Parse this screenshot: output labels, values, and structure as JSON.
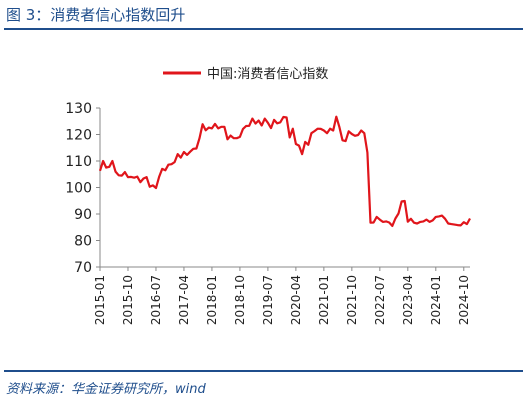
{
  "figure": {
    "title": "图 3：消费者信心指数回升",
    "source": "资料来源：华金证券研究所，wind"
  },
  "chart_data": {
    "type": "line",
    "title": "",
    "xlabel": "",
    "ylabel": "",
    "ylim": [
      70,
      130
    ],
    "yticks": [
      70,
      80,
      90,
      100,
      110,
      120,
      130
    ],
    "xticks": [
      "2015-01",
      "2015-10",
      "2016-07",
      "2017-04",
      "2018-01",
      "2018-10",
      "2019-07",
      "2020-04",
      "2021-01",
      "2021-10",
      "2022-07",
      "2023-04",
      "2024-01",
      "2024-10"
    ],
    "legend": "top-center",
    "grid": false,
    "line_color": "#e0151b",
    "x": [
      "2015-01",
      "2015-02",
      "2015-03",
      "2015-04",
      "2015-05",
      "2015-06",
      "2015-07",
      "2015-08",
      "2015-09",
      "2015-10",
      "2015-11",
      "2015-12",
      "2016-01",
      "2016-02",
      "2016-03",
      "2016-04",
      "2016-05",
      "2016-06",
      "2016-07",
      "2016-08",
      "2016-09",
      "2016-10",
      "2016-11",
      "2016-12",
      "2017-01",
      "2017-02",
      "2017-03",
      "2017-04",
      "2017-05",
      "2017-06",
      "2017-07",
      "2017-08",
      "2017-09",
      "2017-10",
      "2017-11",
      "2017-12",
      "2018-01",
      "2018-02",
      "2018-03",
      "2018-04",
      "2018-05",
      "2018-06",
      "2018-07",
      "2018-08",
      "2018-09",
      "2018-10",
      "2018-11",
      "2018-12",
      "2019-01",
      "2019-02",
      "2019-03",
      "2019-04",
      "2019-05",
      "2019-06",
      "2019-07",
      "2019-08",
      "2019-09",
      "2019-10",
      "2019-11",
      "2019-12",
      "2020-01",
      "2020-02",
      "2020-03",
      "2020-04",
      "2020-05",
      "2020-06",
      "2020-07",
      "2020-08",
      "2020-09",
      "2020-10",
      "2020-11",
      "2020-12",
      "2021-01",
      "2021-02",
      "2021-03",
      "2021-04",
      "2021-05",
      "2021-06",
      "2021-07",
      "2021-08",
      "2021-09",
      "2021-10",
      "2021-11",
      "2021-12",
      "2022-01",
      "2022-02",
      "2022-03",
      "2022-04",
      "2022-05",
      "2022-06",
      "2022-07",
      "2022-08",
      "2022-09",
      "2022-10",
      "2022-11",
      "2022-12",
      "2023-01",
      "2023-02",
      "2023-03",
      "2023-04",
      "2023-05",
      "2023-06",
      "2023-07",
      "2023-08",
      "2023-09",
      "2023-10",
      "2023-11",
      "2023-12",
      "2024-01",
      "2024-02",
      "2024-03",
      "2024-04",
      "2024-05",
      "2024-06",
      "2024-07",
      "2024-08",
      "2024-09",
      "2024-10",
      "2024-11",
      "2024-12"
    ],
    "series": [
      {
        "name": "中国:消费者信心指数",
        "values": [
          106.3,
          110.0,
          107.5,
          107.8,
          110.0,
          106.0,
          104.6,
          104.5,
          105.8,
          103.9,
          104.0,
          103.7,
          104.1,
          102.0,
          103.4,
          103.9,
          100.3,
          100.8,
          99.8,
          104.0,
          107.0,
          106.5,
          108.6,
          108.8,
          109.6,
          112.6,
          111.3,
          113.4,
          112.3,
          113.5,
          114.6,
          114.7,
          118.6,
          123.9,
          121.6,
          122.6,
          122.3,
          124.0,
          122.3,
          122.9,
          122.9,
          118.2,
          119.6,
          118.6,
          118.6,
          119.1,
          122.1,
          123.2,
          123.3,
          126.0,
          124.1,
          125.3,
          123.4,
          126.0,
          124.4,
          122.4,
          125.5,
          124.2,
          124.6,
          126.6,
          126.4,
          118.9,
          122.2,
          116.4,
          115.8,
          112.6,
          117.2,
          116.1,
          120.5,
          121.3,
          122.2,
          122.1,
          121.5,
          120.5,
          122.2,
          121.5,
          126.7,
          122.8,
          117.8,
          117.5,
          121.2,
          120.2,
          119.5,
          119.8,
          121.5,
          120.5,
          113.2,
          86.7,
          86.8,
          88.9,
          87.9,
          87.0,
          87.2,
          86.8,
          85.5,
          88.3,
          90.2,
          94.7,
          94.9,
          87.1,
          88.2,
          86.7,
          86.4,
          87.0,
          87.2,
          87.9,
          87.0,
          87.6,
          88.9,
          89.1,
          89.4,
          88.2,
          86.4,
          86.2,
          86.0,
          85.8,
          85.7,
          86.9,
          86.2,
          88.3
        ]
      }
    ]
  }
}
